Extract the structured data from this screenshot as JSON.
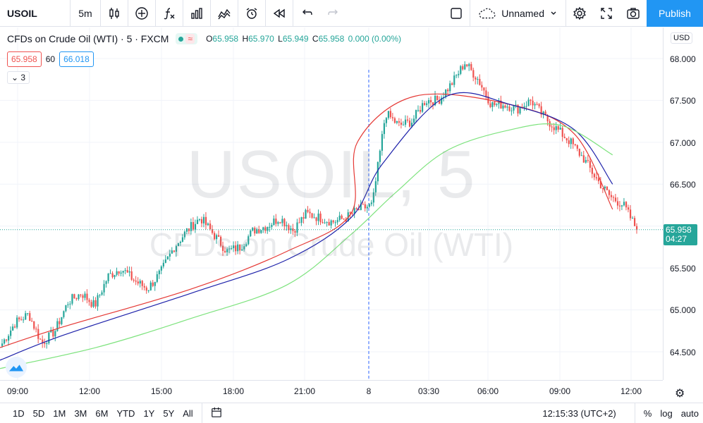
{
  "toolbar": {
    "symbol": "USOIL",
    "interval": "5m",
    "layout_name": "Unnamed",
    "publish_label": "Publish"
  },
  "legend": {
    "title": "CFDs on Crude Oil (WTI) · 5 · FXCM",
    "ohlc": {
      "o_label": "O",
      "o": "65.958",
      "h_label": "H",
      "h": "65.970",
      "l_label": "L",
      "l": "65.949",
      "c_label": "C",
      "c": "65.958",
      "change": "0.000 (0.00%)"
    },
    "bid": "65.958",
    "spread": "60",
    "ask": "66.018",
    "collapse_count": "3"
  },
  "watermark": {
    "symbol": "USOIL, 5",
    "description": "CFDs on Crude Oil (WTI)"
  },
  "price_scale": {
    "currency": "USD",
    "ticks": [
      "68.000",
      "67.500",
      "67.000",
      "66.500",
      "65.500",
      "65.000",
      "64.500"
    ],
    "last_price": "65.958",
    "countdown": "04:27"
  },
  "time_scale": {
    "ticks": [
      "09:00",
      "12:00",
      "15:00",
      "18:00",
      "21:00",
      "8",
      "03:30",
      "06:00",
      "09:00",
      "12:00"
    ]
  },
  "bottom_bar": {
    "ranges": [
      "1D",
      "5D",
      "1M",
      "3M",
      "6M",
      "YTD",
      "1Y",
      "5Y",
      "All"
    ],
    "clock": "12:15:33 (UTC+2)",
    "percent": "%",
    "log": "log",
    "auto": "auto"
  },
  "colors": {
    "up": "#26a69a",
    "down": "#ef5350",
    "ma_fast": "#e53935",
    "ma_mid": "#1e22aa",
    "ma_slow": "#7ee37e",
    "accent": "#2196f3"
  },
  "chart_data": {
    "type": "candlestick",
    "title": "",
    "xlabel": "",
    "ylabel": "",
    "ylim": [
      64.25,
      68.15
    ],
    "price_path": [
      [
        "09:00",
        64.6
      ],
      [
        "09:30",
        64.85
      ],
      [
        "10:00",
        64.95
      ],
      [
        "10:20",
        64.6
      ],
      [
        "11:00",
        64.75
      ],
      [
        "12:00",
        65.1
      ],
      [
        "12:30",
        65.2
      ],
      [
        "13:00",
        65.05
      ],
      [
        "13:30",
        65.4
      ],
      [
        "14:00",
        65.5
      ],
      [
        "14:30",
        65.35
      ],
      [
        "15:00",
        65.25
      ],
      [
        "15:30",
        65.45
      ],
      [
        "16:00",
        65.75
      ],
      [
        "16:30",
        65.95
      ],
      [
        "17:00",
        66.1
      ],
      [
        "17:30",
        65.9
      ],
      [
        "18:00",
        65.7
      ],
      [
        "18:30",
        65.75
      ],
      [
        "19:00",
        65.95
      ],
      [
        "19:30",
        66.0
      ],
      [
        "20:00",
        66.1
      ],
      [
        "20:30",
        65.95
      ],
      [
        "21:00",
        66.15
      ],
      [
        "21:30",
        66.1
      ],
      [
        "22:00",
        66.05
      ],
      [
        "22:30",
        66.1
      ],
      [
        "23:00",
        66.2
      ],
      [
        "23:30",
        66.25
      ],
      [
        "00:10",
        67.35
      ],
      [
        "01:00",
        67.2
      ],
      [
        "02:00",
        67.25
      ],
      [
        "02:30",
        67.5
      ],
      [
        "03:30",
        67.5
      ],
      [
        "04:00",
        67.7
      ],
      [
        "04:30",
        67.95
      ],
      [
        "05:00",
        67.75
      ],
      [
        "06:00",
        67.45
      ],
      [
        "07:00",
        67.45
      ],
      [
        "08:00",
        67.4
      ],
      [
        "08:30",
        67.5
      ],
      [
        "09:00",
        67.3
      ],
      [
        "09:30",
        67.15
      ],
      [
        "10:00",
        67.0
      ],
      [
        "10:30",
        66.8
      ],
      [
        "11:00",
        66.55
      ],
      [
        "11:30",
        66.35
      ],
      [
        "12:00",
        66.25
      ],
      [
        "12:15",
        65.96
      ]
    ],
    "series": [
      {
        "name": "",
        "color": "#e53935",
        "values": [
          [
            0,
            64.55
          ],
          [
            0.1,
            64.8
          ],
          [
            0.3,
            65.25
          ],
          [
            0.45,
            65.7
          ],
          [
            0.55,
            66.15
          ],
          [
            0.56,
            67.0
          ],
          [
            0.65,
            67.55
          ],
          [
            0.8,
            67.45
          ],
          [
            0.9,
            67.1
          ],
          [
            0.96,
            66.2
          ]
        ]
      },
      {
        "name": "",
        "color": "#1e22aa",
        "values": [
          [
            0,
            64.4
          ],
          [
            0.1,
            64.7
          ],
          [
            0.3,
            65.2
          ],
          [
            0.45,
            65.6
          ],
          [
            0.55,
            66.1
          ],
          [
            0.6,
            66.75
          ],
          [
            0.7,
            67.55
          ],
          [
            0.8,
            67.45
          ],
          [
            0.9,
            67.15
          ],
          [
            0.96,
            66.5
          ]
        ]
      },
      {
        "name": "",
        "color": "#7ee37e",
        "values": [
          [
            0,
            64.3
          ],
          [
            0.15,
            64.55
          ],
          [
            0.3,
            64.9
          ],
          [
            0.45,
            65.3
          ],
          [
            0.55,
            65.9
          ],
          [
            0.62,
            66.4
          ],
          [
            0.7,
            66.9
          ],
          [
            0.8,
            67.15
          ],
          [
            0.88,
            67.2
          ],
          [
            0.96,
            66.85
          ]
        ]
      }
    ],
    "last_price": 65.958
  }
}
